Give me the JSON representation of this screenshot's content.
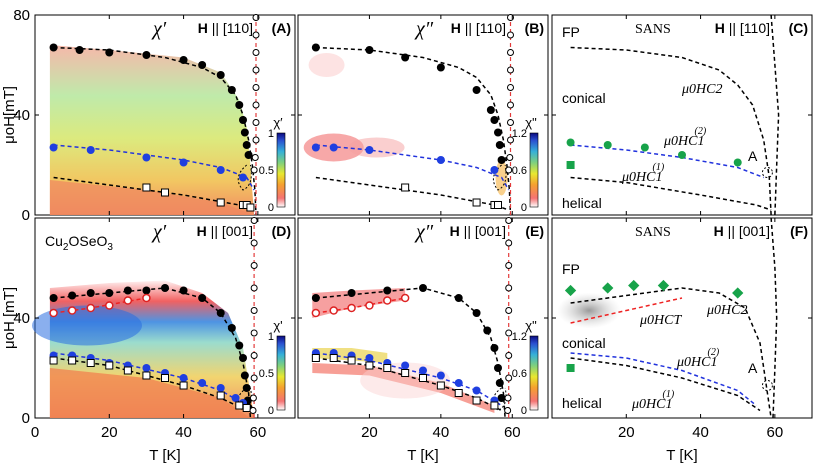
{
  "chart_data": {
    "type": "scatter",
    "description_free": true,
    "shared_axes": {
      "xlabel": "T [K]",
      "x_ticks": [
        0,
        20,
        40,
        60
      ],
      "xlim": [
        0,
        70
      ],
      "y_ticks": [
        0,
        40,
        80
      ],
      "ylim": [
        0,
        80
      ],
      "ylabel_top": "μ₀H[mT]",
      "ylabel_bottom": "μ₀H [mT]"
    },
    "panels": [
      {
        "id": "A",
        "label": "(A)",
        "symbol": "χ′",
        "field": "H || [110]",
        "colorbar": {
          "title": "χ′",
          "ticks": [
            "0",
            "0.5",
            "1"
          ],
          "scheme": "jet"
        },
        "series": [
          {
            "name": "Hc2 upper boundary",
            "marker": "filled-black",
            "points": [
              [
                5,
                67
              ],
              [
                12,
                66
              ],
              [
                20,
                65
              ],
              [
                30,
                64
              ],
              [
                40,
                62
              ],
              [
                45,
                60
              ],
              [
                50,
                56
              ],
              [
                53,
                50
              ],
              [
                55,
                44
              ],
              [
                56,
                38
              ],
              [
                56.5,
                33
              ],
              [
                57,
                28
              ],
              [
                57.5,
                24
              ]
            ]
          },
          {
            "name": "Hc1(2)",
            "marker": "filled-blue",
            "points": [
              [
                5,
                27
              ],
              [
                15,
                26
              ],
              [
                30,
                23
              ],
              [
                40,
                21
              ],
              [
                50,
                18
              ],
              [
                56,
                15
              ]
            ]
          },
          {
            "name": "Hc1(1)",
            "marker": "open-square",
            "points": [
              [
                30,
                11
              ],
              [
                35,
                9
              ],
              [
                50,
                5
              ],
              [
                56,
                4
              ],
              [
                57,
                4
              ],
              [
                58,
                3
              ]
            ]
          },
          {
            "name": "Tc line",
            "marker": "open-circle",
            "points": [
              [
                59.5,
                79
              ],
              [
                59.5,
                72
              ],
              [
                59.5,
                65
              ],
              [
                59.5,
                58
              ],
              [
                59.5,
                51
              ],
              [
                59.5,
                44
              ],
              [
                59.5,
                37
              ],
              [
                59.5,
                30
              ],
              [
                59.3,
                23
              ],
              [
                59,
                18
              ]
            ]
          }
        ]
      },
      {
        "id": "B",
        "label": "(B)",
        "symbol": "χ″",
        "field": "H || [110]",
        "colorbar": {
          "title": "χ\"",
          "ticks": [
            "0",
            "0.6",
            "1.2"
          ],
          "scheme": "jet"
        },
        "series": [
          {
            "name": "Hc2 upper boundary",
            "marker": "filled-black",
            "points": [
              [
                5,
                67
              ],
              [
                20,
                66
              ],
              [
                30,
                63
              ],
              [
                40,
                59
              ],
              [
                50,
                50
              ],
              [
                54,
                42
              ],
              [
                55,
                38
              ],
              [
                56,
                33
              ],
              [
                56.5,
                28
              ],
              [
                57,
                22
              ]
            ]
          },
          {
            "name": "Hc1(2)",
            "marker": "filled-blue",
            "points": [
              [
                5,
                27
              ],
              [
                10,
                27
              ],
              [
                20,
                26
              ],
              [
                40,
                22
              ],
              [
                55,
                18
              ]
            ]
          },
          {
            "name": "Hc1(1)",
            "marker": "open-square",
            "points": [
              [
                30,
                11
              ],
              [
                50,
                5
              ],
              [
                55,
                4
              ],
              [
                56,
                4
              ]
            ]
          },
          {
            "name": "Tc line",
            "marker": "open-circle",
            "points": [
              [
                59.5,
                79
              ],
              [
                59.5,
                72
              ],
              [
                59.5,
                65
              ],
              [
                59.5,
                58
              ],
              [
                59.5,
                51
              ],
              [
                59.5,
                44
              ],
              [
                59.5,
                37
              ],
              [
                59.5,
                30
              ],
              [
                59.3,
                23
              ],
              [
                59,
                18
              ]
            ]
          }
        ]
      },
      {
        "id": "C",
        "label": "(C)",
        "source": "SANS",
        "field": "H || [110]",
        "series": [
          {
            "name": "Hc1(2) SANS",
            "marker": "filled-green-circle",
            "points": [
              [
                5,
                29
              ],
              [
                15,
                28
              ],
              [
                25,
                27
              ],
              [
                35,
                24
              ],
              [
                50,
                21
              ]
            ]
          },
          {
            "name": "Hc1(1) SANS",
            "marker": "filled-green-square",
            "points": [
              [
                5,
                20
              ]
            ]
          }
        ],
        "phase_labels": [
          "FP",
          "conical",
          "helical",
          "A"
        ],
        "line_labels": [
          "μ₀H_C2",
          "μ₀H_C1^(2)",
          "μ₀H_C1^(1)"
        ]
      },
      {
        "id": "D",
        "label": "(D)",
        "symbol": "χ′",
        "field": "H || [001]",
        "material": "Cu₂OSeO₃",
        "colorbar": {
          "title": "χ'",
          "ticks": [
            "0",
            "0.5",
            "1"
          ],
          "scheme": "jet"
        },
        "series": [
          {
            "name": "Hc2 upper boundary",
            "marker": "filled-black",
            "points": [
              [
                5,
                48
              ],
              [
                10,
                49
              ],
              [
                15,
                50
              ],
              [
                20,
                50
              ],
              [
                25,
                51
              ],
              [
                30,
                51
              ],
              [
                35,
                52
              ],
              [
                40,
                51
              ],
              [
                45,
                48
              ],
              [
                50,
                42
              ],
              [
                53,
                36
              ],
              [
                55,
                29
              ],
              [
                56,
                24
              ],
              [
                56.5,
                17
              ],
              [
                57,
                12
              ],
              [
                57.3,
                7
              ],
              [
                57.5,
                4
              ]
            ]
          },
          {
            "name": "HCT (red open)",
            "marker": "open-red-circle",
            "points": [
              [
                5,
                42
              ],
              [
                10,
                43
              ],
              [
                15,
                44
              ],
              [
                20,
                45
              ],
              [
                25,
                47
              ],
              [
                30,
                48
              ]
            ]
          },
          {
            "name": "Hc1(2)",
            "marker": "filled-blue",
            "points": [
              [
                5,
                25
              ],
              [
                10,
                25
              ],
              [
                15,
                24
              ],
              [
                20,
                22
              ],
              [
                25,
                21
              ],
              [
                30,
                20
              ],
              [
                35,
                18
              ],
              [
                40,
                16
              ],
              [
                45,
                14
              ],
              [
                50,
                12
              ],
              [
                54,
                8
              ],
              [
                56,
                6
              ]
            ]
          },
          {
            "name": "Hc1(1)",
            "marker": "open-square",
            "points": [
              [
                5,
                23
              ],
              [
                10,
                23
              ],
              [
                15,
                22
              ],
              [
                20,
                21
              ],
              [
                25,
                19
              ],
              [
                30,
                17
              ],
              [
                35,
                16
              ],
              [
                40,
                13
              ],
              [
                50,
                9
              ],
              [
                55,
                5
              ],
              [
                57,
                4
              ]
            ]
          },
          {
            "name": "Tc line",
            "marker": "open-circle",
            "points": [
              [
                59,
                79
              ],
              [
                59,
                70
              ],
              [
                59,
                61
              ],
              [
                59,
                52
              ],
              [
                59,
                43
              ],
              [
                59,
                34
              ],
              [
                59,
                25
              ],
              [
                59,
                16
              ],
              [
                58.8,
                8
              ],
              [
                58.7,
                3
              ]
            ]
          }
        ]
      },
      {
        "id": "E",
        "label": "(E)",
        "symbol": "χ″",
        "field": "H || [001]",
        "colorbar": {
          "title": "χ\"",
          "ticks": [
            "0",
            "0.6",
            "1.2"
          ],
          "scheme": "jet"
        },
        "series": [
          {
            "name": "Hc2 upper boundary",
            "marker": "filled-black",
            "points": [
              [
                5,
                48
              ],
              [
                15,
                50
              ],
              [
                25,
                51
              ],
              [
                35,
                52
              ],
              [
                45,
                48
              ],
              [
                50,
                42
              ],
              [
                53,
                35
              ],
              [
                55,
                28
              ],
              [
                56,
                20
              ],
              [
                56.5,
                14
              ],
              [
                57,
                8
              ]
            ]
          },
          {
            "name": "HCT (red open)",
            "marker": "open-red-circle",
            "points": [
              [
                5,
                42
              ],
              [
                10,
                43
              ],
              [
                15,
                44
              ],
              [
                20,
                45
              ],
              [
                25,
                47
              ],
              [
                30,
                48
              ]
            ]
          },
          {
            "name": "Hc1(2)",
            "marker": "filled-blue",
            "points": [
              [
                5,
                26
              ],
              [
                10,
                26
              ],
              [
                15,
                25
              ],
              [
                20,
                24
              ],
              [
                25,
                22
              ],
              [
                30,
                21
              ],
              [
                35,
                19
              ],
              [
                40,
                17
              ],
              [
                45,
                14
              ],
              [
                50,
                11
              ],
              [
                55,
                7
              ]
            ]
          },
          {
            "name": "Hc1(1)",
            "marker": "open-square",
            "points": [
              [
                5,
                24
              ],
              [
                10,
                24
              ],
              [
                15,
                23
              ],
              [
                20,
                21
              ],
              [
                25,
                20
              ],
              [
                30,
                18
              ],
              [
                35,
                16
              ],
              [
                40,
                13
              ],
              [
                45,
                10
              ],
              [
                50,
                7
              ],
              [
                55,
                5
              ]
            ]
          },
          {
            "name": "Tc line",
            "marker": "open-circle",
            "points": [
              [
                59,
                79
              ],
              [
                59,
                70
              ],
              [
                59,
                61
              ],
              [
                59,
                52
              ],
              [
                59,
                43
              ],
              [
                59,
                34
              ],
              [
                59,
                25
              ],
              [
                59,
                16
              ],
              [
                58.8,
                8
              ],
              [
                58.7,
                3
              ]
            ]
          }
        ]
      },
      {
        "id": "F",
        "label": "(F)",
        "source": "SANS",
        "field": "H || [001]",
        "series": [
          {
            "name": "Hc2 SANS",
            "marker": "filled-green-diamond",
            "points": [
              [
                5,
                51
              ],
              [
                15,
                52
              ],
              [
                22,
                53
              ],
              [
                30,
                53
              ],
              [
                50,
                50
              ]
            ]
          },
          {
            "name": "Hc1(1) SANS",
            "marker": "filled-green-square",
            "points": [
              [
                5,
                20
              ]
            ]
          }
        ],
        "phase_labels": [
          "FP",
          "conical",
          "helical",
          "A"
        ],
        "line_labels": [
          "μ₀H_C2",
          "μ₀H_CT",
          "μ₀H_C1^(2)",
          "μ₀H_C1^(1)"
        ]
      }
    ]
  },
  "text": {
    "xlabel": "T [K]",
    "ylabel_top": "μoH[mT]",
    "ylabel_bottom": "μoH [mT]",
    "material": "Cu2OSeO3",
    "fp": "FP",
    "conical": "conical",
    "helical": "helical",
    "a_label": "A",
    "sans": "SANS"
  },
  "colors": {
    "filled_blue": "#1f3fe0",
    "filled_green": "#17a34a",
    "dashed_blue": "#2233dd",
    "dashed_red": "#ee2222",
    "tc_line_red": "#e33b3b"
  }
}
